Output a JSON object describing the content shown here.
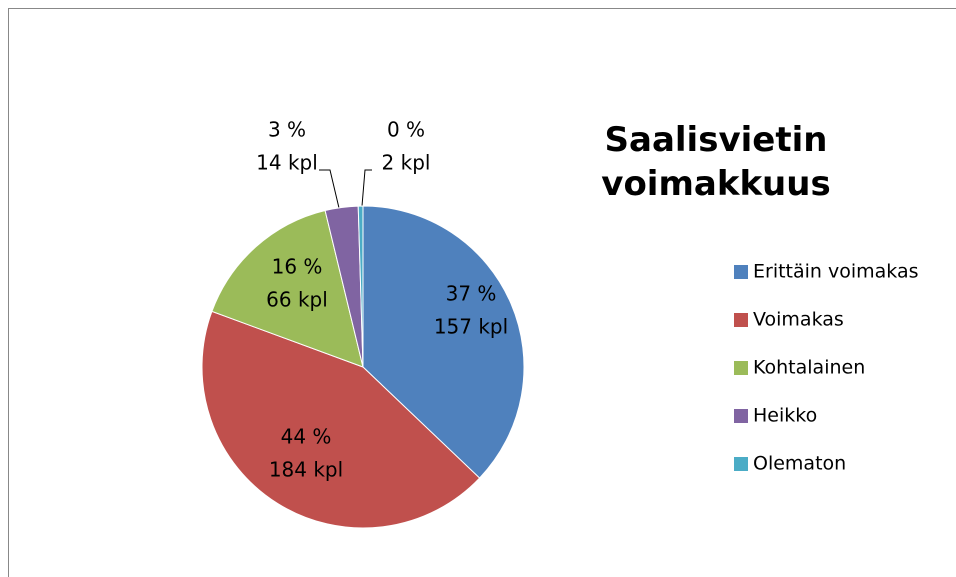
{
  "chart_data": {
    "type": "pie",
    "title": "Saalisvietin voimakkuus",
    "categories": [
      "Erittäin voimakas",
      "Voimakas",
      "Kohtalainen",
      "Heikko",
      "Olematon"
    ],
    "values": [
      157,
      184,
      66,
      14,
      2
    ],
    "value_labels": [
      "157 kpl",
      "184 kpl",
      "66 kpl",
      "14 kpl",
      "2 kpl"
    ],
    "percent_labels": [
      "37 %",
      "44 %",
      "16 %",
      "3 %",
      "0 %"
    ],
    "colors": [
      "#4f81bd",
      "#c0504d",
      "#9bbb59",
      "#8064a2",
      "#4bacc6"
    ],
    "legend": "right"
  }
}
